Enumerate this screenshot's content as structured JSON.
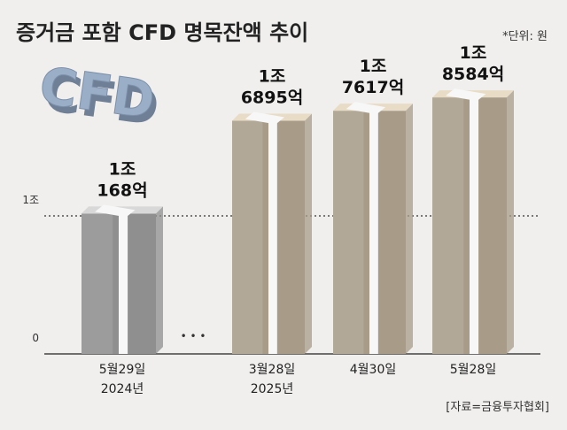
{
  "title": "증거금 포함 CFD 명목잔액 추이",
  "unit_note": "*단위: 원",
  "source": "[자료=금융투자협회]",
  "logo_text": "CFD",
  "ellipsis": "• • •",
  "colors": {
    "background": "#f0efed",
    "bar_gray": "#8f8f8f",
    "bar_tan": "#a89c89",
    "bar_top_gray": "#d8d8d8",
    "bar_top_tan": "#e9dcc6",
    "band_white": "#f7f7f7",
    "logo_blue": "#9aaec7"
  },
  "chart_data": {
    "type": "bar",
    "title": "증거금 포함 CFD 명목잔액 추이",
    "unit": "원",
    "categories": [
      "5월29일\n2024년",
      "3월28일\n2025년",
      "4월30일",
      "5월28일"
    ],
    "values": [
      1.0168,
      1.6895,
      1.7617,
      1.8584
    ],
    "value_unit": "조 원",
    "data_labels": [
      [
        "1조",
        "168억"
      ],
      [
        "1조",
        "6895억"
      ],
      [
        "1조",
        "7617억"
      ],
      [
        "1조",
        "8584억"
      ]
    ],
    "y_ticks": [
      {
        "label": "0",
        "value": 0
      },
      {
        "label": "1조",
        "value": 1
      }
    ],
    "reference_line": 1,
    "bar_styles": [
      "gray",
      "tan",
      "tan",
      "tan"
    ]
  }
}
